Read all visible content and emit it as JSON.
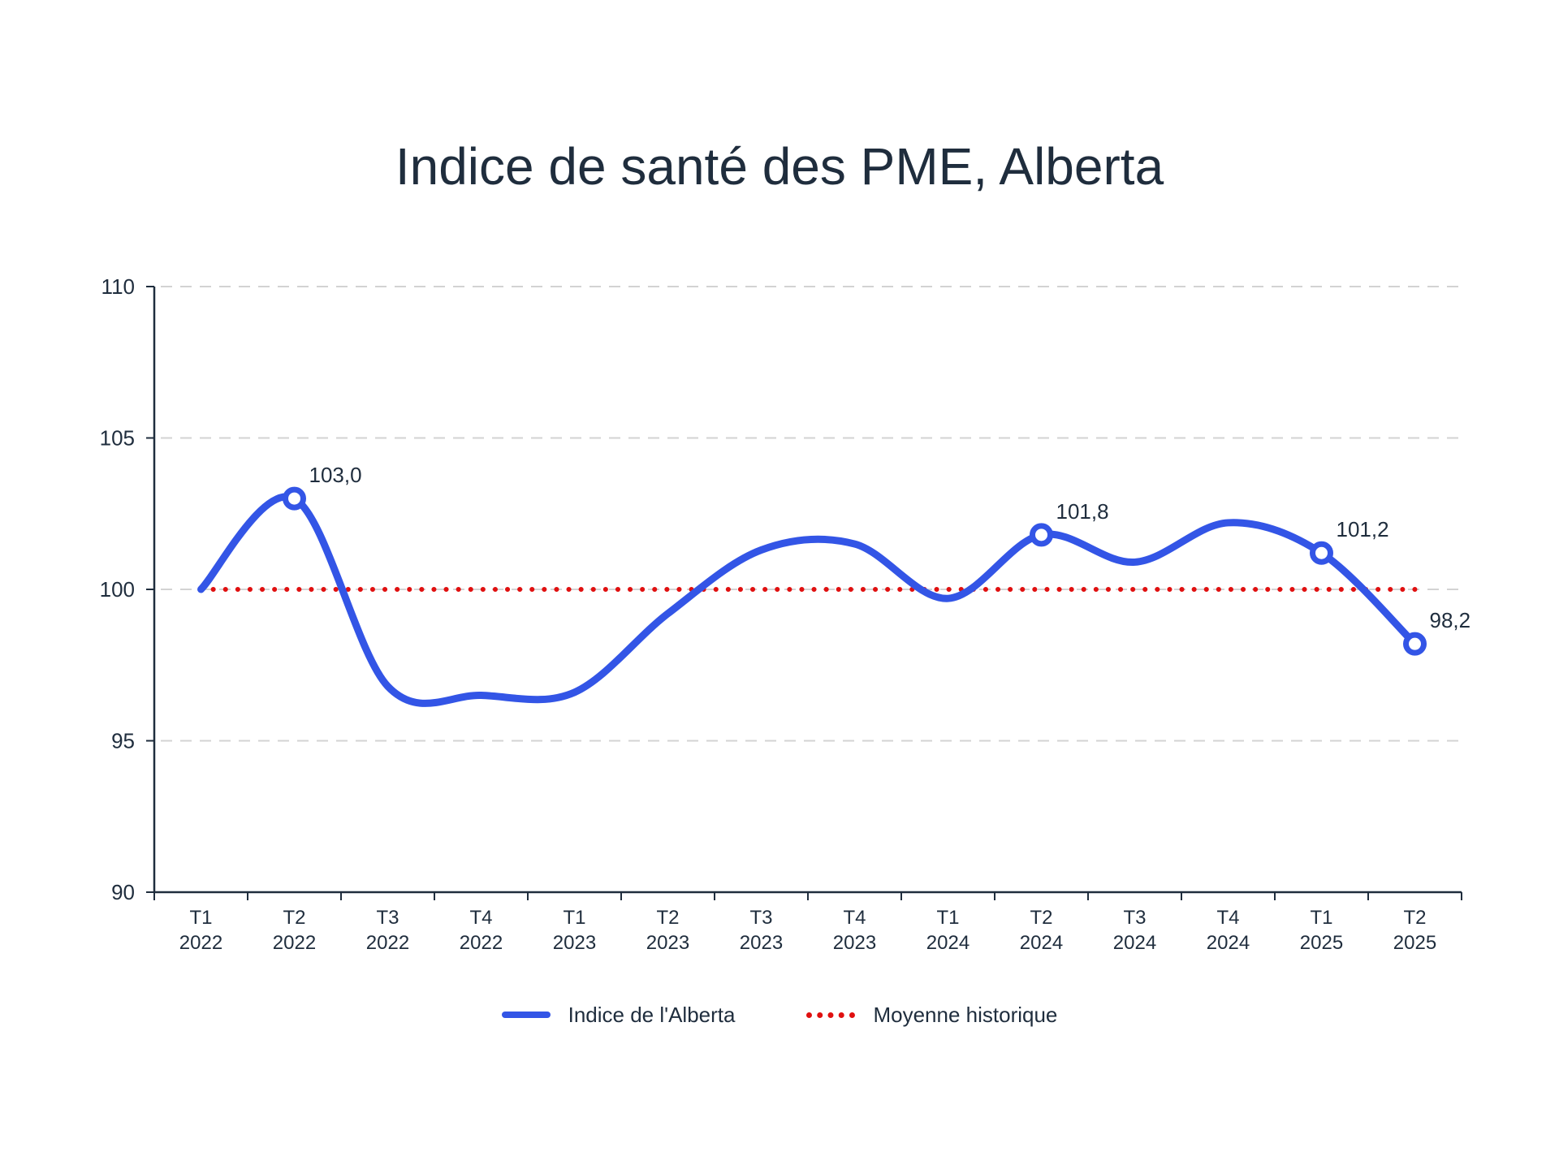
{
  "chart_data": {
    "type": "line",
    "title": "Indice de santé des PME, Alberta",
    "xlabel": "",
    "ylabel": "",
    "ylim": [
      90,
      110
    ],
    "yticks": [
      "90",
      "95",
      "100",
      "105",
      "110"
    ],
    "grid": true,
    "legend_position": "bottom",
    "categories": [
      [
        "T1",
        "2022"
      ],
      [
        "T2",
        "2022"
      ],
      [
        "T3",
        "2022"
      ],
      [
        "T4",
        "2022"
      ],
      [
        "T1",
        "2023"
      ],
      [
        "T2",
        "2023"
      ],
      [
        "T3",
        "2023"
      ],
      [
        "T4",
        "2023"
      ],
      [
        "T1",
        "2024"
      ],
      [
        "T2",
        "2024"
      ],
      [
        "T3",
        "2024"
      ],
      [
        "T4",
        "2024"
      ],
      [
        "T1",
        "2025"
      ],
      [
        "T2",
        "2025"
      ]
    ],
    "series": [
      {
        "name": "Indice de l'Alberta",
        "color": "#3355e6",
        "style": "solid",
        "values": [
          100.0,
          103.0,
          96.8,
          96.5,
          96.6,
          99.2,
          101.3,
          101.5,
          99.7,
          101.8,
          100.9,
          102.2,
          101.2,
          98.2
        ]
      },
      {
        "name": "Moyenne historique",
        "color": "#e01010",
        "style": "dotted",
        "values": [
          100,
          100,
          100,
          100,
          100,
          100,
          100,
          100,
          100,
          100,
          100,
          100,
          100,
          100
        ]
      }
    ],
    "annotations": [
      {
        "index": 1,
        "value": 103.0,
        "label": "103,0"
      },
      {
        "index": 9,
        "value": 101.8,
        "label": "101,8"
      },
      {
        "index": 12,
        "value": 101.2,
        "label": "101,2"
      },
      {
        "index": 13,
        "value": 98.2,
        "label": "98,2"
      }
    ]
  }
}
